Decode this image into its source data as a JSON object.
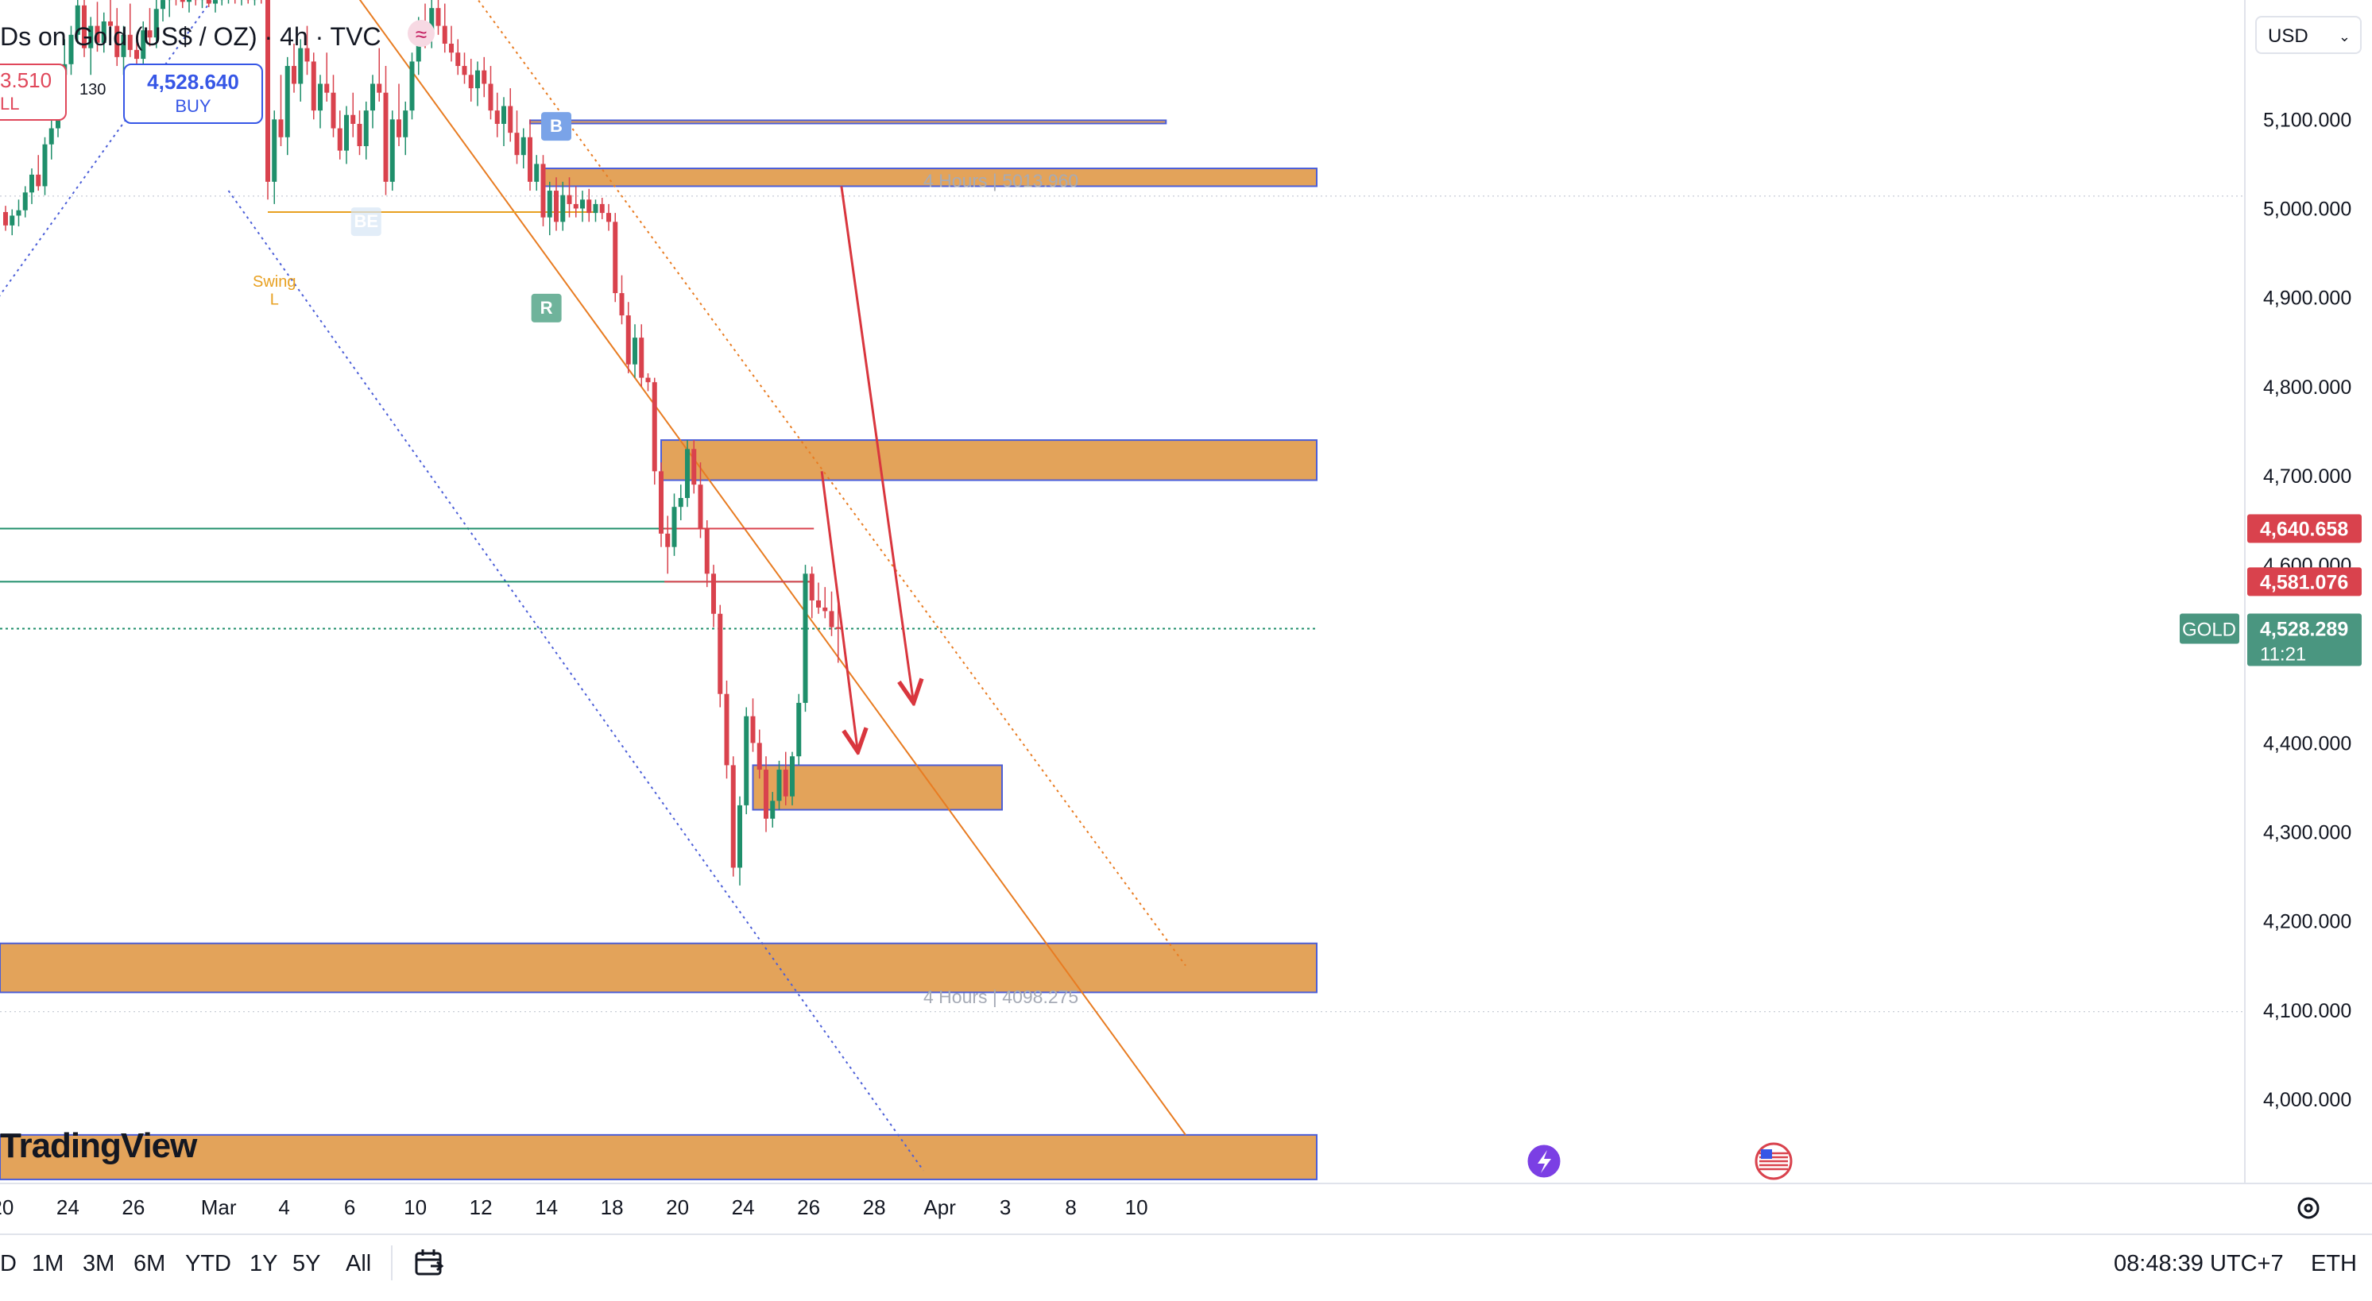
{
  "header": {
    "title": "Ds on Gold (US$ / OZ) · 4h · TVC",
    "sell_price": "3.510",
    "sell_label": "LL",
    "spread": "130",
    "buy_price": "4,528.640",
    "buy_label": "BUY",
    "currency": "USD"
  },
  "colors": {
    "bull": "#1f8f6b",
    "bear": "#d9424d",
    "zone_fill": "#e3a35a",
    "zone_border": "#4b5ed8",
    "trend": "#e87c22",
    "arrow": "#d9363e",
    "last_price_bg": "#4a9680"
  },
  "chart_data": {
    "type": "candlestick",
    "symbol": "GOLD",
    "timeframe": "4h",
    "ylim": [
      3920,
      5240
    ],
    "y_ticks": [
      4000,
      4100,
      4200,
      4300,
      4400,
      4500,
      4600,
      4700,
      4800,
      4900,
      5000,
      5100
    ],
    "y_tick_labels": [
      "4,000.000",
      "4,100.000",
      "4,200.000",
      "4,300.000",
      "4,400.000",
      "",
      "4,600.000",
      "4,700.000",
      "4,800.000",
      "4,900.000",
      "5,000.000",
      "5,100.000"
    ],
    "x_ticks": [
      {
        "label": "20",
        "bar": -0.5
      },
      {
        "label": "24",
        "bar": 9.5
      },
      {
        "label": "26",
        "bar": 19.5
      },
      {
        "label": "Mar",
        "bar": 32.5
      },
      {
        "label": "4",
        "bar": 42.5
      },
      {
        "label": "6",
        "bar": 52.5
      },
      {
        "label": "10",
        "bar": 62.5
      },
      {
        "label": "12",
        "bar": 72.5
      },
      {
        "label": "14",
        "bar": 82.5
      },
      {
        "label": "18",
        "bar": 92.5
      },
      {
        "label": "20",
        "bar": 102.5
      },
      {
        "label": "24",
        "bar": 112.5
      },
      {
        "label": "26",
        "bar": 122.5
      },
      {
        "label": "28",
        "bar": 132.5
      },
      {
        "label": "Apr",
        "bar": 142.5
      },
      {
        "label": "3",
        "bar": 152.5
      },
      {
        "label": "8",
        "bar": 162.5
      },
      {
        "label": "10",
        "bar": 172.5
      }
    ],
    "candles": [
      [
        4996,
        5003,
        4975,
        4981
      ],
      [
        4981,
        4999,
        4970,
        4992
      ],
      [
        4992,
        5010,
        4980,
        4998
      ],
      [
        4998,
        5025,
        4990,
        5018
      ],
      [
        5018,
        5045,
        5005,
        5038
      ],
      [
        5038,
        5060,
        5020,
        5025
      ],
      [
        5025,
        5080,
        5015,
        5072
      ],
      [
        5072,
        5110,
        5055,
        5090
      ],
      [
        5090,
        5160,
        5080,
        5150
      ],
      [
        5150,
        5190,
        5130,
        5162
      ],
      [
        5162,
        5205,
        5150,
        5195
      ],
      [
        5195,
        5240,
        5185,
        5228
      ],
      [
        5228,
        5240,
        5170,
        5180
      ],
      [
        5180,
        5215,
        5150,
        5205
      ],
      [
        5205,
        5232,
        5176,
        5186
      ],
      [
        5186,
        5220,
        5175,
        5210
      ],
      [
        5210,
        5240,
        5190,
        5205
      ],
      [
        5205,
        5225,
        5160,
        5170
      ],
      [
        5170,
        5205,
        5150,
        5195
      ],
      [
        5195,
        5230,
        5170,
        5178
      ],
      [
        5178,
        5190,
        5120,
        5168
      ],
      [
        5168,
        5210,
        5155,
        5200
      ],
      [
        5200,
        5225,
        5182,
        5192
      ],
      [
        5192,
        5235,
        5180,
        5224
      ],
      [
        5224,
        5240,
        5210,
        5234
      ],
      [
        5234,
        5240,
        5215,
        5238
      ],
      [
        5238,
        5240,
        5228,
        5235
      ],
      [
        5235,
        5240,
        5225,
        5232
      ],
      [
        5232,
        5240,
        5220,
        5238
      ],
      [
        5238,
        5240,
        5228,
        5234
      ],
      [
        5234,
        5240,
        5225,
        5236
      ],
      [
        5236,
        5240,
        5226,
        5230
      ],
      [
        5230,
        5240,
        5220,
        5234
      ],
      [
        5234,
        5240,
        5228,
        5236
      ],
      [
        5236,
        5240,
        5230,
        5238
      ],
      [
        5238,
        5240,
        5230,
        5236
      ],
      [
        5236,
        5240,
        5228,
        5238
      ],
      [
        5238,
        5240,
        5230,
        5234
      ],
      [
        5234,
        5240,
        5228,
        5238
      ],
      [
        5238,
        5240,
        5230,
        5236
      ],
      [
        5236,
        5240,
        5010,
        5030
      ],
      [
        5030,
        5110,
        5005,
        5100
      ],
      [
        5100,
        5150,
        5070,
        5080
      ],
      [
        5080,
        5170,
        5060,
        5160
      ],
      [
        5160,
        5185,
        5130,
        5140
      ],
      [
        5140,
        5190,
        5120,
        5180
      ],
      [
        5180,
        5205,
        5150,
        5165
      ],
      [
        5165,
        5175,
        5100,
        5110
      ],
      [
        5110,
        5150,
        5090,
        5140
      ],
      [
        5140,
        5175,
        5120,
        5130
      ],
      [
        5130,
        5150,
        5080,
        5090
      ],
      [
        5090,
        5110,
        5055,
        5065
      ],
      [
        5065,
        5115,
        5050,
        5105
      ],
      [
        5105,
        5130,
        5080,
        5095
      ],
      [
        5095,
        5110,
        5060,
        5070
      ],
      [
        5070,
        5120,
        5055,
        5110
      ],
      [
        5110,
        5150,
        5090,
        5140
      ],
      [
        5140,
        5180,
        5120,
        5130
      ],
      [
        5130,
        5160,
        5015,
        5030
      ],
      [
        5030,
        5110,
        5020,
        5100
      ],
      [
        5100,
        5140,
        5070,
        5080
      ],
      [
        5080,
        5120,
        5060,
        5110
      ],
      [
        5110,
        5175,
        5100,
        5165
      ],
      [
        5165,
        5215,
        5150,
        5205
      ],
      [
        5205,
        5230,
        5180,
        5195
      ],
      [
        5195,
        5235,
        5180,
        5225
      ],
      [
        5225,
        5240,
        5195,
        5205
      ],
      [
        5205,
        5230,
        5175,
        5185
      ],
      [
        5185,
        5205,
        5165,
        5175
      ],
      [
        5175,
        5190,
        5150,
        5160
      ],
      [
        5160,
        5175,
        5140,
        5150
      ],
      [
        5150,
        5168,
        5120,
        5135
      ],
      [
        5135,
        5165,
        5115,
        5155
      ],
      [
        5155,
        5170,
        5125,
        5140
      ],
      [
        5140,
        5160,
        5100,
        5110
      ],
      [
        5110,
        5130,
        5080,
        5095
      ],
      [
        5095,
        5125,
        5070,
        5115
      ],
      [
        5115,
        5135,
        5075,
        5085
      ],
      [
        5085,
        5110,
        5050,
        5060
      ],
      [
        5060,
        5090,
        5045,
        5080
      ],
      [
        5080,
        5100,
        5020,
        5030
      ],
      [
        5030,
        5060,
        5020,
        5050
      ],
      [
        5050,
        5060,
        4980,
        4990
      ],
      [
        4990,
        5030,
        4970,
        5020
      ],
      [
        5020,
        5035,
        4975,
        4985
      ],
      [
        4985,
        5030,
        4975,
        5015
      ],
      [
        5015,
        5035,
        4990,
        5005
      ],
      [
        5005,
        5025,
        4990,
        5000
      ],
      [
        5000,
        5020,
        4985,
        5010
      ],
      [
        5010,
        5022,
        4985,
        4995
      ],
      [
        4995,
        5010,
        4985,
        5005
      ],
      [
        5005,
        5012,
        4988,
        4995
      ],
      [
        4995,
        5005,
        4975,
        4985
      ],
      [
        4985,
        4995,
        4895,
        4905
      ],
      [
        4905,
        4925,
        4870,
        4880
      ],
      [
        4880,
        4895,
        4815,
        4825
      ],
      [
        4825,
        4870,
        4810,
        4855
      ],
      [
        4855,
        4870,
        4800,
        4810
      ],
      [
        4810,
        4815,
        4795,
        4805
      ],
      [
        4805,
        4810,
        4690,
        4705
      ],
      [
        4705,
        4715,
        4620,
        4635
      ],
      [
        4635,
        4655,
        4590,
        4620
      ],
      [
        4620,
        4680,
        4610,
        4665
      ],
      [
        4665,
        4690,
        4650,
        4675
      ],
      [
        4675,
        4740,
        4665,
        4730
      ],
      [
        4730,
        4740,
        4680,
        4690
      ],
      [
        4690,
        4715,
        4630,
        4640
      ],
      [
        4640,
        4650,
        4575,
        4590
      ],
      [
        4590,
        4600,
        4530,
        4545
      ],
      [
        4545,
        4555,
        4440,
        4455
      ],
      [
        4455,
        4470,
        4360,
        4375
      ],
      [
        4375,
        4385,
        4250,
        4260
      ],
      [
        4260,
        4340,
        4240,
        4330
      ],
      [
        4330,
        4440,
        4320,
        4430
      ],
      [
        4430,
        4450,
        4390,
        4400
      ],
      [
        4400,
        4415,
        4360,
        4370
      ],
      [
        4370,
        4385,
        4300,
        4315
      ],
      [
        4315,
        4345,
        4305,
        4335
      ],
      [
        4335,
        4380,
        4325,
        4370
      ],
      [
        4370,
        4390,
        4330,
        4340
      ],
      [
        4340,
        4390,
        4330,
        4385
      ],
      [
        4385,
        4455,
        4375,
        4445
      ],
      [
        4445,
        4600,
        4435,
        4590
      ],
      [
        4590,
        4598,
        4540,
        4560
      ],
      [
        4560,
        4580,
        4545,
        4552
      ],
      [
        4552,
        4575,
        4540,
        4548
      ],
      [
        4548,
        4570,
        4520,
        4530
      ],
      [
        4530,
        4565,
        4490,
        4528
      ]
    ],
    "last_price": {
      "label": "GOLD",
      "value": "4,528.289",
      "countdown": "11:21"
    },
    "price_labels": [
      {
        "value": 4640.658,
        "text": "4,640.658"
      },
      {
        "value": 4581.076,
        "text": "4,581.076"
      }
    ],
    "zones": [
      {
        "bar0": 80,
        "bar1": 177,
        "ylo": 5097,
        "yhi": 5099
      },
      {
        "bar0": 82,
        "bar1": 200,
        "ylo": 5025,
        "yhi": 5045
      },
      {
        "bar0": 100,
        "bar1": 200,
        "ylo": 4695,
        "yhi": 4740
      },
      {
        "bar0": 114,
        "bar1": 152,
        "ylo": 4325,
        "yhi": 4375
      },
      {
        "bar0": -10,
        "bar1": 200,
        "ylo": 4120,
        "yhi": 4175
      },
      {
        "bar0": -10,
        "bar1": 200,
        "ylo": 3910,
        "yhi": 3960
      }
    ],
    "hlines": [
      {
        "y": 4640.658,
        "color": "#1f8f6b",
        "bar0": -10,
        "bar1": 123
      },
      {
        "y": 4581.076,
        "color": "#1f8f6b",
        "bar0": -10,
        "bar1": 123
      },
      {
        "y": 4528.289,
        "color": "#1f8f6b",
        "dotted": true,
        "bar0": -10,
        "bar1": 200
      },
      {
        "y": 4996,
        "color": "#e8a020",
        "bar0": 40,
        "bar1": 90
      }
    ],
    "annotations": [
      {
        "text": "4 Hours | 5013.960",
        "bar": 140,
        "y": 5024
      },
      {
        "text": "4 Hours | 4098.275",
        "bar": 140,
        "y": 4108
      },
      {
        "text": "Swing",
        "bar": 41,
        "y": 4912
      },
      {
        "text": "L",
        "bar": 41,
        "y": 4892
      }
    ],
    "markers": [
      {
        "text": "B",
        "bar": 84,
        "y": 5094
      },
      {
        "text": "R",
        "bar": 82.5,
        "y": 4890
      },
      {
        "text": "BE",
        "bar": 55,
        "y": 4987
      }
    ],
    "trendlines": [
      {
        "b0": 52,
        "y0": 5255,
        "b1": 180,
        "y1": 3960,
        "color": "#e87c22",
        "style": "solid"
      },
      {
        "b0": 71,
        "y0": 5245,
        "b1": 180,
        "y1": 4150,
        "color": "#e87c22",
        "style": "dotted"
      },
      {
        "b0": 34,
        "y0": 5020,
        "b1": 140,
        "y1": 3920,
        "color": "#4b5ed8",
        "style": "dotted"
      },
      {
        "b0": -5,
        "y0": 4860,
        "b1": 32,
        "y1": 5240,
        "color": "#4b5ed8",
        "style": "dotted"
      }
    ],
    "arrows": [
      {
        "b0": 127.5,
        "y0": 5025,
        "b1": 138.5,
        "y1": 4445
      },
      {
        "b0": 124.5,
        "y0": 4705,
        "b1": 130,
        "y1": 4390
      }
    ],
    "range_buttons": [
      "D",
      "1M",
      "3M",
      "6M",
      "YTD",
      "1Y",
      "5Y",
      "All"
    ],
    "clock": "08:48:39 UTC+7",
    "session": "ETH",
    "logo": "TradingView"
  }
}
